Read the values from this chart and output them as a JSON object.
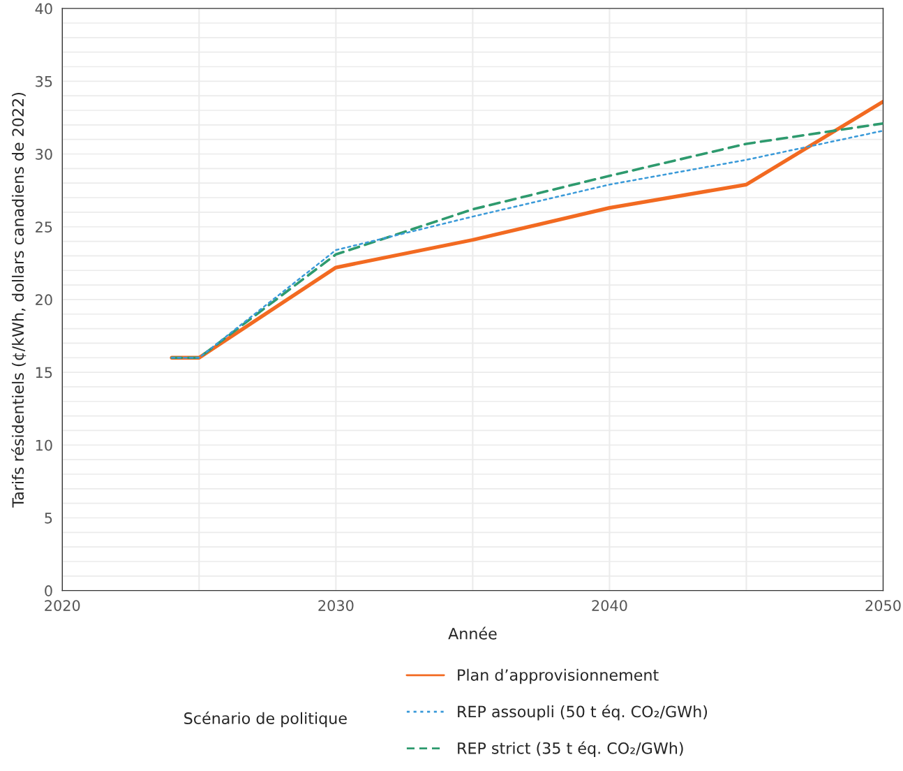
{
  "chart_data": {
    "type": "line",
    "xlabel": "Année",
    "ylabel": "Tarifs résidentiels (¢/kWh, dollars canadiens de 2022)",
    "legend_title": "Scénario de politique",
    "x": [
      2024,
      2025,
      2030,
      2035,
      2040,
      2045,
      2050
    ],
    "series": [
      {
        "name": "Plan d’approvisionnement",
        "color": "#f26a21",
        "line_style": "solid",
        "values": [
          16.0,
          16.0,
          22.2,
          24.1,
          26.3,
          27.9,
          33.6
        ]
      },
      {
        "name": "REP assoupli (50 t éq. CO₂/GWh)",
        "color": "#3a9ad9",
        "line_style": "dotted",
        "values": [
          16.0,
          16.0,
          23.4,
          25.7,
          27.9,
          29.6,
          31.6
        ]
      },
      {
        "name": "REP strict (35 t éq. CO₂/GWh)",
        "color": "#2e9a6e",
        "line_style": "dashed",
        "values": [
          16.0,
          16.0,
          23.1,
          26.2,
          28.5,
          30.7,
          32.1
        ]
      }
    ],
    "xlim": [
      2020,
      2050
    ],
    "xticks": [
      2020,
      2030,
      2040,
      2050
    ],
    "ylim": [
      0,
      40
    ],
    "yticks": [
      0,
      5,
      10,
      15,
      20,
      25,
      30,
      35,
      40
    ],
    "grid": true,
    "legend": "bottom"
  }
}
